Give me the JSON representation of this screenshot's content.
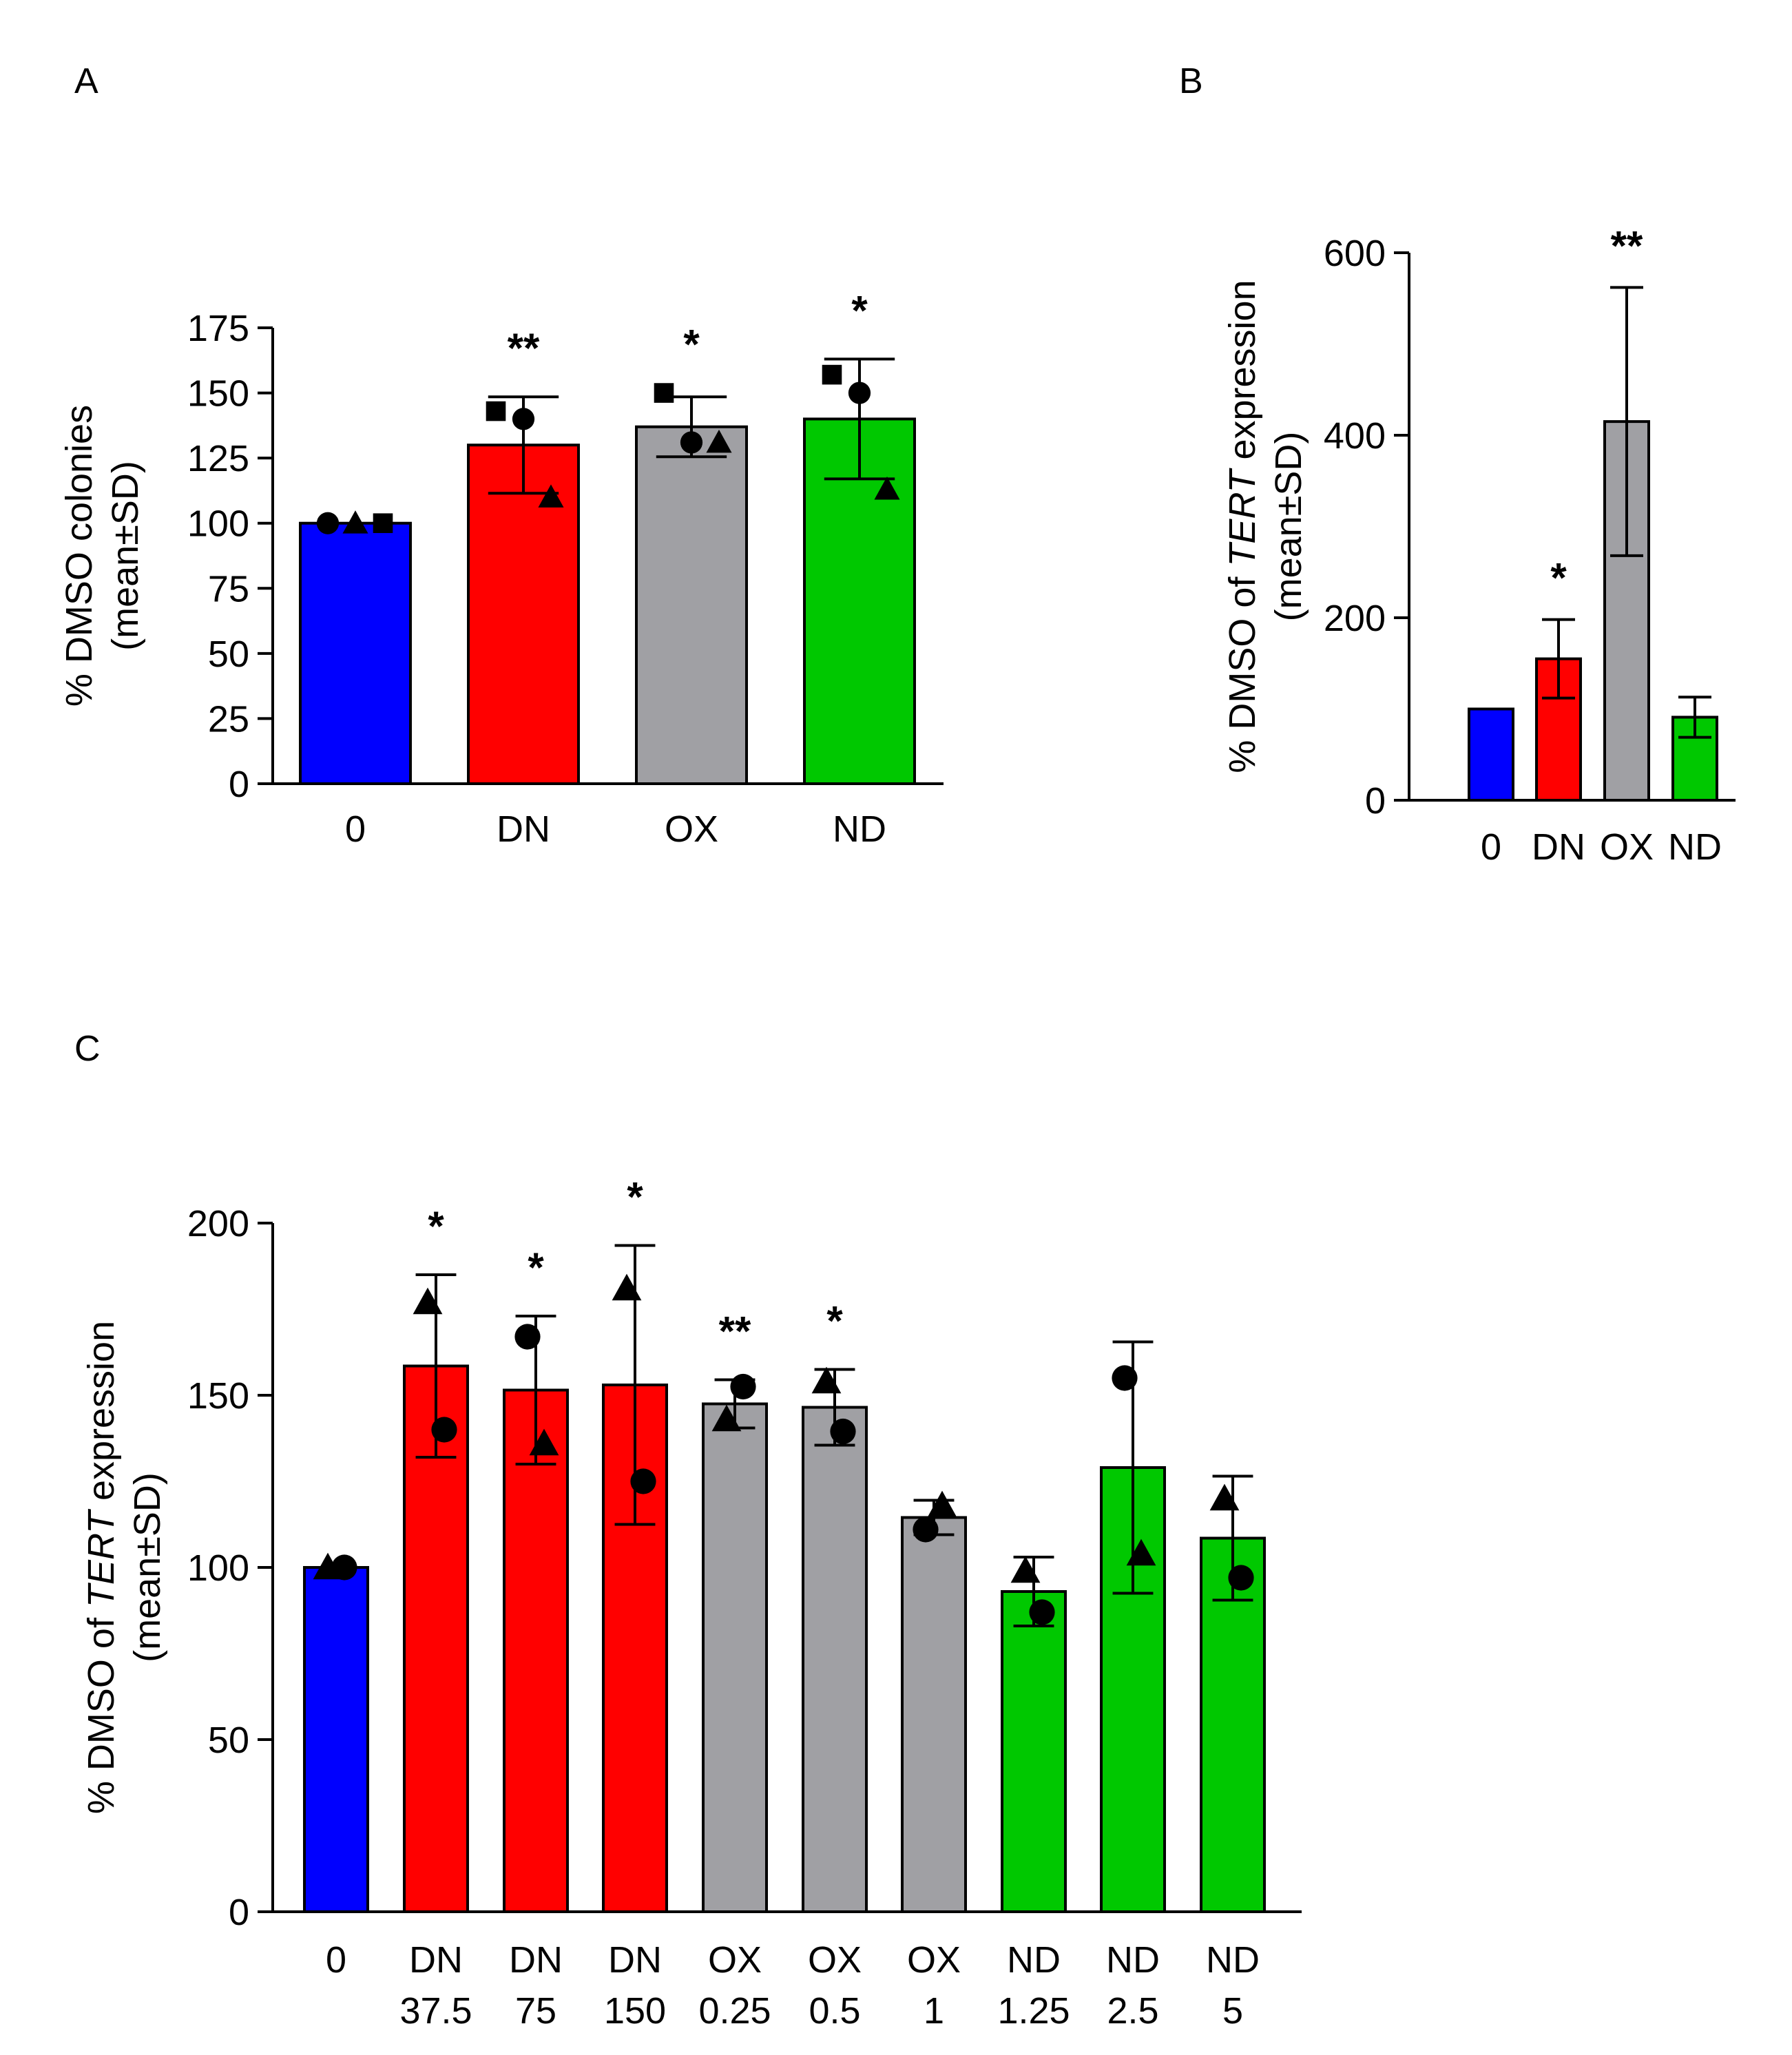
{
  "chart_data": [
    {
      "panel": "A",
      "type": "bar",
      "ylabel": "% DMSO colonies",
      "ylabel2": "(mean±SD)",
      "ylim": [
        0,
        175
      ],
      "yticks": [
        0,
        25,
        50,
        75,
        100,
        125,
        150,
        175
      ],
      "categories": [
        {
          "label": [
            "0"
          ],
          "value": 100,
          "sd": 0,
          "color": "#0000ff",
          "sig": "",
          "points": [
            {
              "shape": "circle",
              "y": 100
            },
            {
              "shape": "triangle",
              "y": 100
            },
            {
              "shape": "square",
              "y": 100
            }
          ]
        },
        {
          "label": [
            "DN"
          ],
          "value": 130,
          "sd": 18.5,
          "color": "#ff0000",
          "sig": "**",
          "points": [
            {
              "shape": "square",
              "y": 143
            },
            {
              "shape": "circle",
              "y": 140
            },
            {
              "shape": "triangle",
              "y": 110
            }
          ]
        },
        {
          "label": [
            "OX"
          ],
          "value": 137,
          "sd": 11.5,
          "color": "#a0a0a4",
          "sig": "*",
          "points": [
            {
              "shape": "square",
              "y": 150
            },
            {
              "shape": "circle",
              "y": 131
            },
            {
              "shape": "triangle",
              "y": 131
            }
          ]
        },
        {
          "label": [
            "ND"
          ],
          "value": 140,
          "sd": 23,
          "color": "#00c800",
          "sig": "*",
          "points": [
            {
              "shape": "square",
              "y": 157
            },
            {
              "shape": "circle",
              "y": 150
            },
            {
              "shape": "triangle",
              "y": 113
            }
          ]
        }
      ]
    },
    {
      "panel": "B",
      "type": "bar",
      "ylabel": "% DMSO of TERT expression",
      "ylabel_prefix": "% DMSO of ",
      "ylabel_italic": "TERT",
      "ylabel_suffix": " expression",
      "ylabel2": "(mean±SD)",
      "ylim": [
        0,
        600
      ],
      "yticks": [
        0,
        200,
        400,
        600
      ],
      "categories": [
        {
          "label": [
            "0"
          ],
          "value": 100,
          "sd": 0,
          "color": "#0000ff",
          "sig": "",
          "points": []
        },
        {
          "label": [
            "DN"
          ],
          "value": 155,
          "sd": 43,
          "color": "#ff0000",
          "sig": "*",
          "points": []
        },
        {
          "label": [
            "OX"
          ],
          "value": 415,
          "sd": 147,
          "color": "#a0a0a4",
          "sig": "**",
          "points": []
        },
        {
          "label": [
            "ND"
          ],
          "value": 91,
          "sd": 22,
          "color": "#00c800",
          "sig": "",
          "points": []
        }
      ]
    },
    {
      "panel": "C",
      "type": "bar",
      "ylabel": "% DMSO of TERT expression",
      "ylabel_prefix": "% DMSO of ",
      "ylabel_italic": "TERT",
      "ylabel_suffix": " expression",
      "ylabel2": "(mean±SD)",
      "ylim": [
        0,
        200
      ],
      "yticks": [
        0,
        50,
        100,
        150,
        200
      ],
      "categories": [
        {
          "label": [
            "0"
          ],
          "value": 100,
          "sd": 0,
          "color": "#0000ff",
          "sig": "",
          "points": [
            {
              "shape": "triangle",
              "y": 100
            },
            {
              "shape": "circle",
              "y": 100
            }
          ]
        },
        {
          "label": [
            "DN",
            "37.5"
          ],
          "value": 158.5,
          "sd": 26.5,
          "color": "#ff0000",
          "sig": "*",
          "points": [
            {
              "shape": "triangle",
              "y": 177
            },
            {
              "shape": "circle",
              "y": 140
            }
          ]
        },
        {
          "label": [
            "DN",
            "75"
          ],
          "value": 151.5,
          "sd": 21.5,
          "color": "#ff0000",
          "sig": "*",
          "points": [
            {
              "shape": "circle",
              "y": 167
            },
            {
              "shape": "triangle",
              "y": 136
            }
          ]
        },
        {
          "label": [
            "DN",
            "150"
          ],
          "value": 153,
          "sd": 40.5,
          "color": "#ff0000",
          "sig": "*",
          "points": [
            {
              "shape": "triangle",
              "y": 181
            },
            {
              "shape": "circle",
              "y": 125
            }
          ]
        },
        {
          "label": [
            "OX",
            "0.25"
          ],
          "value": 147.5,
          "sd": 7,
          "color": "#a0a0a4",
          "sig": "**",
          "points": [
            {
              "shape": "triangle",
              "y": 143
            },
            {
              "shape": "circle",
              "y": 152.5
            }
          ]
        },
        {
          "label": [
            "OX",
            "0.5"
          ],
          "value": 146.5,
          "sd": 11,
          "color": "#a0a0a4",
          "sig": "*",
          "points": [
            {
              "shape": "triangle",
              "y": 154
            },
            {
              "shape": "circle",
              "y": 139.5
            }
          ]
        },
        {
          "label": [
            "OX",
            "1"
          ],
          "value": 114.5,
          "sd": 5,
          "color": "#a0a0a4",
          "sig": "",
          "points": [
            {
              "shape": "circle",
              "y": 111
            },
            {
              "shape": "triangle",
              "y": 118
            }
          ]
        },
        {
          "label": [
            "ND",
            "1.25"
          ],
          "value": 93,
          "sd": 10,
          "color": "#00c800",
          "sig": "",
          "points": [
            {
              "shape": "triangle",
              "y": 99
            },
            {
              "shape": "circle",
              "y": 87
            }
          ]
        },
        {
          "label": [
            "ND",
            "2.5"
          ],
          "value": 129,
          "sd": 36.5,
          "color": "#00c800",
          "sig": "",
          "points": [
            {
              "shape": "circle",
              "y": 155
            },
            {
              "shape": "triangle",
              "y": 104
            }
          ]
        },
        {
          "label": [
            "ND",
            "5"
          ],
          "value": 108.5,
          "sd": 18,
          "color": "#00c800",
          "sig": "",
          "points": [
            {
              "shape": "triangle",
              "y": 120
            },
            {
              "shape": "circle",
              "y": 97
            }
          ]
        }
      ]
    }
  ]
}
